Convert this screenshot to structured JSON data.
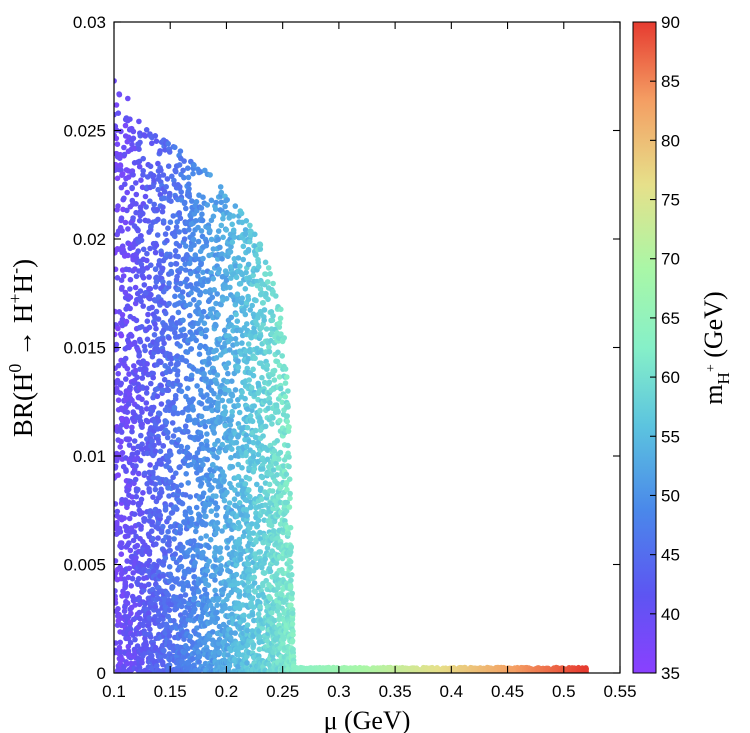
{
  "chart_data": {
    "type": "scatter",
    "xlabel": "μ (GeV)",
    "ylabel": "BR(H0 → H+H-)",
    "xlim": [
      0.1,
      0.55
    ],
    "ylim": [
      0,
      0.03
    ],
    "x_ticks": [
      "0.1",
      "0.15",
      "0.2",
      "0.25",
      "0.3",
      "0.35",
      "0.4",
      "0.45",
      "0.5",
      "0.55"
    ],
    "y_ticks": [
      "0",
      "0.005",
      "0.01",
      "0.015",
      "0.02",
      "0.025",
      "0.03"
    ],
    "colorbar": {
      "label": "mH+ (GeV)",
      "range": [
        35,
        90
      ],
      "ticks": [
        "35",
        "40",
        "45",
        "50",
        "55",
        "60",
        "65",
        "70",
        "75",
        "80",
        "85",
        "90"
      ],
      "palette": "rainbow"
    },
    "regions": [
      {
        "name": "dense points",
        "x_range": [
          0.1,
          0.26
        ],
        "y_max_at_x": [
          [
            0.1,
            0.0275
          ],
          [
            0.13,
            0.025
          ],
          [
            0.17,
            0.0238
          ],
          [
            0.2,
            0.0222
          ],
          [
            0.23,
            0.02
          ],
          [
            0.25,
            0.0165
          ],
          [
            0.255,
            0.013
          ],
          [
            0.26,
            0.0
          ]
        ],
        "color_trend": "mH+ increases with μ (≈38 GeV at μ=0.1 to ≈62 GeV at μ=0.26)"
      },
      {
        "name": "low-BR tail",
        "x_range": [
          0.26,
          0.52
        ],
        "y_range": [
          0,
          0.0003
        ],
        "color_trend": "mH+ rises from ≈62 GeV to ≈90 GeV"
      }
    ],
    "legend": "none",
    "grid": false
  }
}
